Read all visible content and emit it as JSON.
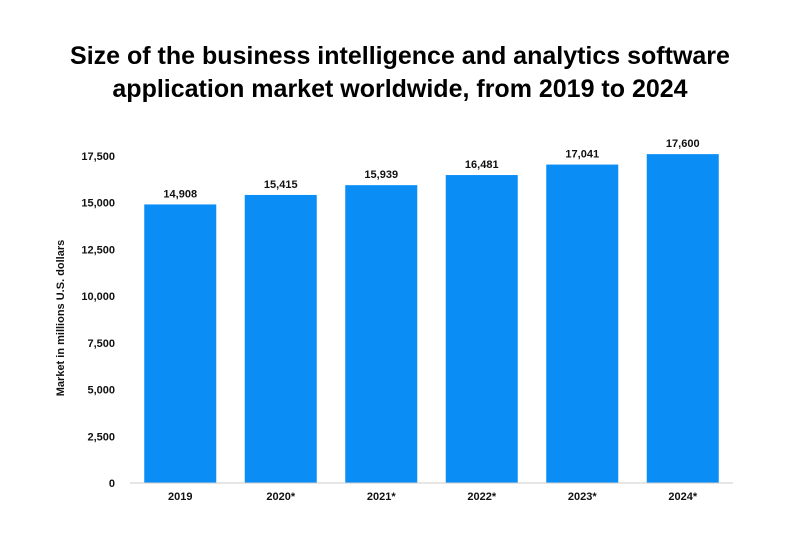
{
  "chart_data": {
    "type": "bar",
    "title_line1": "Size of the business intelligence and analytics software",
    "title_line2": "application market worldwide, from 2019 to 2024",
    "xlabel": "",
    "ylabel": "Market in millions U.S. dollars",
    "categories": [
      "2019",
      "2020*",
      "2021*",
      "2022*",
      "2023*",
      "2024*"
    ],
    "values": [
      14908,
      15415,
      15939,
      16481,
      17041,
      17600
    ],
    "value_labels": [
      "14,908",
      "15,415",
      "15,939",
      "16,481",
      "17,041",
      "17,600"
    ],
    "ylim": [
      0,
      17500
    ],
    "yticks": [
      0,
      2500,
      5000,
      7500,
      10000,
      12500,
      15000,
      17500
    ],
    "ytick_labels": [
      "0",
      "2,500",
      "5,000",
      "7,500",
      "10,000",
      "12,500",
      "15,000",
      "17,500"
    ],
    "grid": false,
    "legend": "none",
    "bar_color": "#0a8ef5",
    "baseline_color": "#cccccc"
  }
}
